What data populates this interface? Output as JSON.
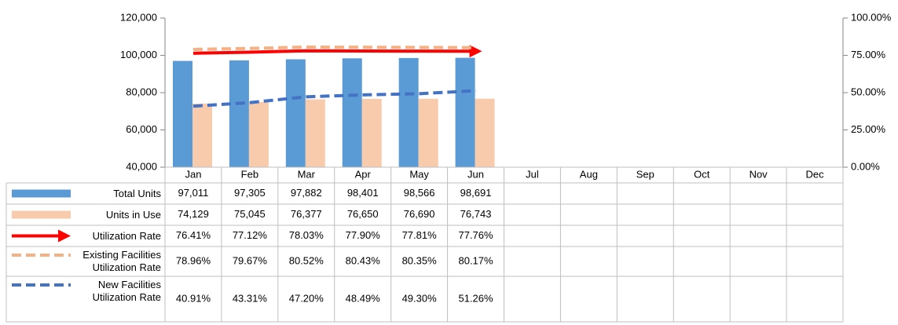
{
  "chart_data": {
    "type": "bar",
    "categories": [
      "Jan",
      "Feb",
      "Mar",
      "Apr",
      "May",
      "Jun",
      "Jul",
      "Aug",
      "Sep",
      "Oct",
      "Nov",
      "Dec"
    ],
    "ylim": [
      40000,
      120000
    ],
    "yticks": [
      {
        "value": 40000,
        "label": "40,000"
      },
      {
        "value": 60000,
        "label": "60,000"
      },
      {
        "value": 80000,
        "label": "80,000"
      },
      {
        "value": 100000,
        "label": "100,000"
      },
      {
        "value": 120000,
        "label": "120,000"
      }
    ],
    "y2lim": [
      0,
      100
    ],
    "y2ticks": [
      {
        "value": 0,
        "label": "0.00%"
      },
      {
        "value": 25,
        "label": "25.00%"
      },
      {
        "value": 50,
        "label": "50.00%"
      },
      {
        "value": 75,
        "label": "75.00%"
      },
      {
        "value": 100,
        "label": "100.00%"
      }
    ],
    "series": [
      {
        "name": "Total Units",
        "type": "bar",
        "color": "#5b9bd5",
        "values": [
          97011,
          97305,
          97882,
          98401,
          98566,
          98691,
          null,
          null,
          null,
          null,
          null,
          null
        ],
        "value_labels": [
          "97,011",
          "97,305",
          "97,882",
          "98,401",
          "98,566",
          "98,691",
          null,
          null,
          null,
          null,
          null,
          null
        ]
      },
      {
        "name": "Units in Use",
        "type": "bar",
        "color": "#f8cbad",
        "values": [
          74129,
          75045,
          76377,
          76650,
          76690,
          76743,
          null,
          null,
          null,
          null,
          null,
          null
        ],
        "value_labels": [
          "74,129",
          "75,045",
          "76,377",
          "76,650",
          "76,690",
          "76,743",
          null,
          null,
          null,
          null,
          null,
          null
        ]
      },
      {
        "name": "Utilization Rate",
        "type": "line",
        "axis": "y2",
        "color": "#ff0000",
        "arrow": true,
        "values": [
          76.41,
          77.12,
          78.03,
          77.9,
          77.81,
          77.76,
          null,
          null,
          null,
          null,
          null,
          null
        ],
        "value_labels": [
          "76.41%",
          "77.12%",
          "78.03%",
          "77.90%",
          "77.81%",
          "77.76%",
          null,
          null,
          null,
          null,
          null,
          null
        ]
      },
      {
        "name": "Existing Facilities Utilization Rate",
        "type": "line",
        "axis": "y2",
        "color": "#f4b183",
        "dashed": true,
        "values": [
          78.96,
          79.67,
          80.52,
          80.43,
          80.35,
          80.17,
          null,
          null,
          null,
          null,
          null,
          null
        ],
        "value_labels": [
          "78.96%",
          "79.67%",
          "80.52%",
          "80.43%",
          "80.35%",
          "80.17%",
          null,
          null,
          null,
          null,
          null,
          null
        ]
      },
      {
        "name": "New Facilities Utilization Rate",
        "type": "line",
        "axis": "y2",
        "color": "#4472c4",
        "dashed": true,
        "values": [
          40.91,
          43.31,
          47.2,
          48.49,
          49.3,
          51.26,
          null,
          null,
          null,
          null,
          null,
          null
        ],
        "value_labels": [
          "40.91%",
          "43.31%",
          "47.20%",
          "48.49%",
          "49.30%",
          "51.26%",
          null,
          null,
          null,
          null,
          null,
          null
        ]
      }
    ]
  }
}
